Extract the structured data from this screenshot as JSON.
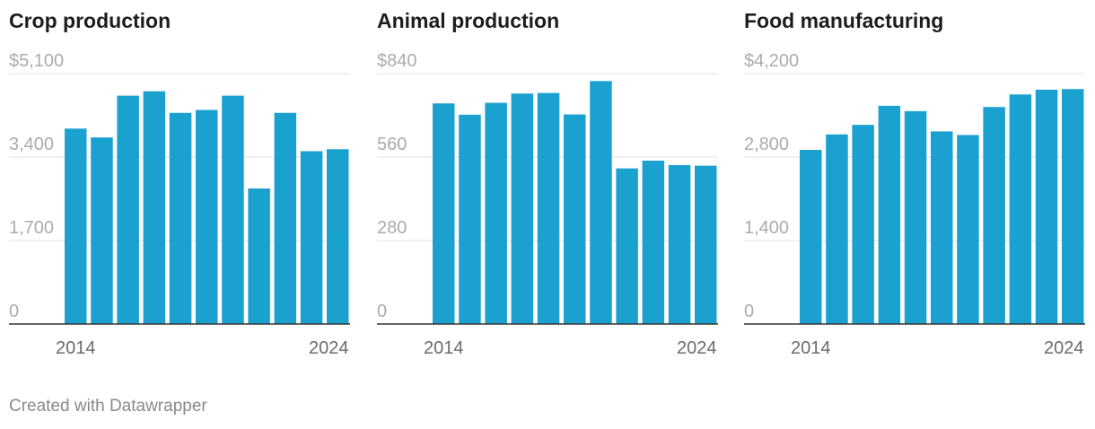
{
  "chart_data": [
    {
      "type": "bar",
      "title": "Crop production",
      "categories": [
        "2014",
        "2015",
        "2016",
        "2017",
        "2018",
        "2019",
        "2020",
        "2021",
        "2022",
        "2023",
        "2024"
      ],
      "values": [
        3980,
        3800,
        4650,
        4740,
        4300,
        4360,
        4650,
        2760,
        4300,
        3520,
        3560
      ],
      "ylim": [
        0,
        5100
      ],
      "y_ticks": [
        0,
        1700,
        3400,
        5100
      ],
      "y_tick_labels": [
        "0",
        "1,700",
        "3,400",
        "$5,100"
      ],
      "x_tick_labels": [
        "2014",
        "2024"
      ],
      "color": "#1ba1cf",
      "xlabel": "",
      "ylabel": ""
    },
    {
      "type": "bar",
      "title": "Animal production",
      "categories": [
        "2014",
        "2015",
        "2016",
        "2017",
        "2018",
        "2019",
        "2020",
        "2021",
        "2022",
        "2023",
        "2024"
      ],
      "values": [
        740,
        702,
        742,
        773,
        775,
        703,
        815,
        522,
        548,
        533,
        531
      ],
      "ylim": [
        0,
        840
      ],
      "y_ticks": [
        0,
        280,
        560,
        840
      ],
      "y_tick_labels": [
        "0",
        "280",
        "560",
        "$840"
      ],
      "x_tick_labels": [
        "2014",
        "2024"
      ],
      "color": "#1ba1cf",
      "xlabel": "",
      "ylabel": ""
    },
    {
      "type": "bar",
      "title": "Food manufacturing",
      "categories": [
        "2014",
        "2015",
        "2016",
        "2017",
        "2018",
        "2019",
        "2020",
        "2021",
        "2022",
        "2023",
        "2024"
      ],
      "values": [
        2920,
        3180,
        3340,
        3660,
        3570,
        3230,
        3170,
        3640,
        3850,
        3930,
        3940
      ],
      "ylim": [
        0,
        4200
      ],
      "y_ticks": [
        0,
        1400,
        2800,
        4200
      ],
      "y_tick_labels": [
        "0",
        "1,400",
        "2,800",
        "$4,200"
      ],
      "x_tick_labels": [
        "2014",
        "2024"
      ],
      "color": "#1ba1cf",
      "xlabel": "",
      "ylabel": ""
    }
  ],
  "footer": {
    "credit": "Created with Datawrapper"
  }
}
